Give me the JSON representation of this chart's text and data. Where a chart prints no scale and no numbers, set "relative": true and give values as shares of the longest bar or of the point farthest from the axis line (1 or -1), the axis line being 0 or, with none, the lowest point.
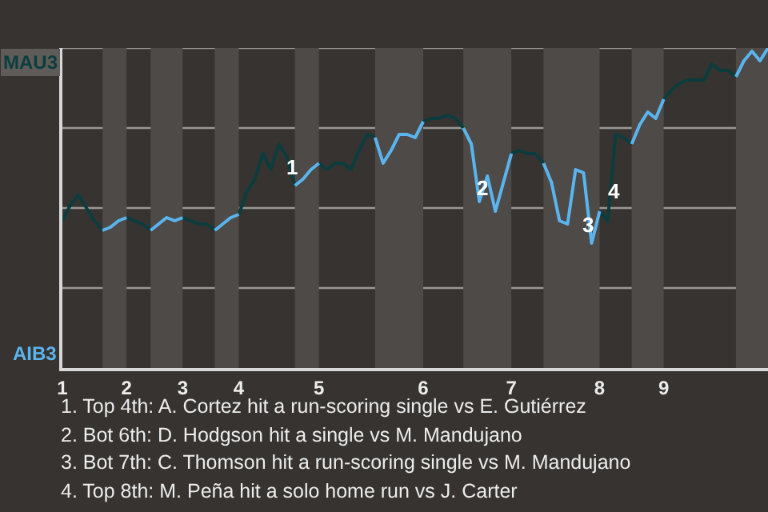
{
  "chart_data": {
    "type": "line",
    "relative": true,
    "categories": [
      "1",
      null,
      null,
      null,
      null,
      null,
      null,
      null,
      "2",
      null,
      null,
      null,
      null,
      null,
      null,
      "3",
      null,
      null,
      null,
      null,
      null,
      null,
      "4",
      null,
      null,
      null,
      null,
      null,
      null,
      null,
      null,
      null,
      "5",
      null,
      null,
      null,
      null,
      null,
      null,
      null,
      null,
      null,
      null,
      null,
      null,
      "6",
      null,
      null,
      null,
      null,
      null,
      null,
      null,
      null,
      null,
      null,
      "7",
      null,
      null,
      null,
      null,
      null,
      null,
      null,
      null,
      null,
      null,
      "8",
      null,
      null,
      null,
      null,
      null,
      null,
      null,
      "9",
      null,
      null,
      null,
      null,
      null,
      null,
      null,
      null,
      null,
      null,
      null,
      null,
      null
    ],
    "series": [
      {
        "name": "MAU3",
        "color": "#0b3d3f",
        "values": [
          0.46,
          0.51,
          0.54,
          0.5,
          0.46,
          0.43,
          null,
          null,
          0.47,
          0.46,
          0.45,
          0.43,
          null,
          null,
          null,
          0.47,
          0.46,
          0.45,
          0.45,
          0.43,
          null,
          null,
          0.48,
          0.55,
          0.59,
          0.67,
          0.62,
          0.7,
          0.66,
          0.57,
          null,
          null,
          0.64,
          0.62,
          0.64,
          0.64,
          0.62,
          0.68,
          0.73,
          0.72,
          null,
          null,
          null,
          null,
          null,
          0.77,
          0.78,
          0.78,
          0.79,
          0.78,
          0.75,
          null,
          null,
          null,
          null,
          null,
          0.67,
          0.68,
          0.67,
          0.67,
          0.64,
          null,
          null,
          null,
          null,
          null,
          null,
          0.49,
          0.46,
          0.73,
          0.72,
          0.7,
          null,
          null,
          null,
          0.84,
          0.87,
          0.89,
          0.9,
          0.9,
          0.9,
          0.95,
          0.93,
          0.93,
          0.91,
          null,
          null,
          null,
          null
        ]
      },
      {
        "name": "AIB3",
        "color": "#5ab4ee",
        "values": [
          null,
          null,
          null,
          null,
          null,
          0.43,
          0.44,
          0.46,
          0.47,
          null,
          null,
          0.43,
          0.45,
          0.47,
          0.46,
          0.47,
          null,
          null,
          null,
          0.43,
          0.45,
          0.47,
          0.48,
          null,
          null,
          null,
          null,
          null,
          null,
          0.57,
          0.59,
          0.62,
          0.64,
          null,
          null,
          null,
          null,
          null,
          null,
          0.72,
          0.64,
          0.68,
          0.73,
          0.73,
          0.72,
          0.77,
          null,
          null,
          null,
          null,
          0.75,
          0.7,
          0.52,
          0.6,
          0.49,
          0.58,
          0.67,
          null,
          null,
          null,
          0.64,
          0.58,
          0.46,
          0.45,
          0.62,
          0.61,
          0.39,
          0.49,
          null,
          null,
          null,
          0.7,
          0.76,
          0.8,
          0.78,
          0.84,
          null,
          null,
          null,
          null,
          null,
          null,
          null,
          null,
          0.91,
          0.96,
          0.99,
          0.96,
          1.0
        ]
      }
    ],
    "tick_labels": "x",
    "grid": "y",
    "annotations": [
      {
        "text": "1",
        "y": 0.63
      },
      {
        "text": "2",
        "y": 0.565
      },
      {
        "text": "3",
        "y": 0.45
      },
      {
        "text": "4",
        "y": 0.555
      },
      "1. Top 4th: A. Cortez hit a run-scoring single vs E. Gutiérrez",
      "2. Bot 6th: D. Hodgson hit a single vs M. Mandujano",
      "3. Bot 7th: C. Thomson hit a run-scoring single vs M. Mandujano",
      "4. Top 8th: M. Peña hit a solo home run vs J. Carter"
    ]
  }
}
